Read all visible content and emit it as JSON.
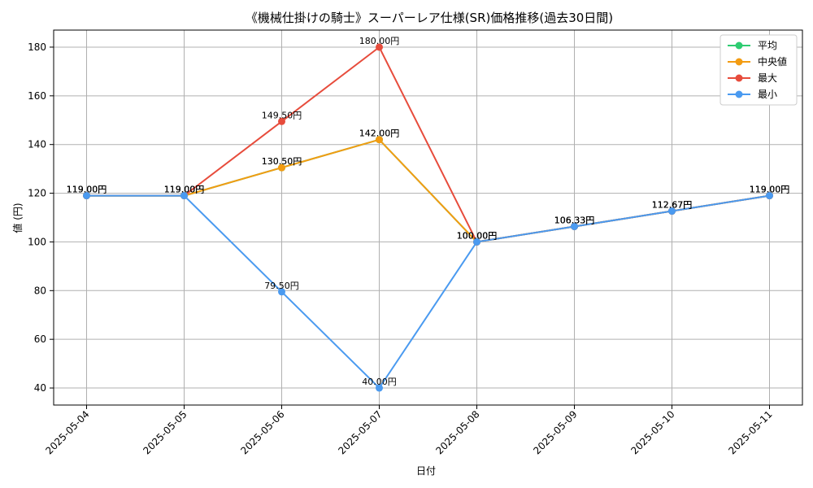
{
  "chart_data": {
    "type": "line",
    "title": "《機械仕掛けの騎士》スーパーレア仕様(SR)価格推移(過去30日間)",
    "xlabel": "日付",
    "ylabel": "値 (円)",
    "ylim": [
      33,
      187
    ],
    "yticks": [
      40,
      60,
      80,
      100,
      120,
      140,
      160,
      180
    ],
    "grid": true,
    "legend_position": "top-right",
    "label_suffix": "円",
    "categories": [
      "2025-05-04",
      "2025-05-05",
      "2025-05-06",
      "2025-05-07",
      "2025-05-08",
      "2025-05-09",
      "2025-05-10",
      "2025-05-11"
    ],
    "series": [
      {
        "name": "平均",
        "color": "#2ecc71",
        "values": [
          119.0,
          119.0,
          130.5,
          142.0,
          100.0,
          106.33,
          112.67,
          119.0
        ]
      },
      {
        "name": "中央値",
        "color": "#f39c12",
        "values": [
          119.0,
          119.0,
          130.5,
          142.0,
          100.0,
          106.33,
          112.67,
          119.0
        ]
      },
      {
        "name": "最大",
        "color": "#e74c3c",
        "values": [
          119.0,
          119.0,
          149.5,
          180.0,
          100.0,
          106.33,
          112.67,
          119.0
        ]
      },
      {
        "name": "最小",
        "color": "#4a9af0",
        "values": [
          119.0,
          119.0,
          79.5,
          40.0,
          100.0,
          106.33,
          112.67,
          119.0
        ]
      }
    ]
  }
}
